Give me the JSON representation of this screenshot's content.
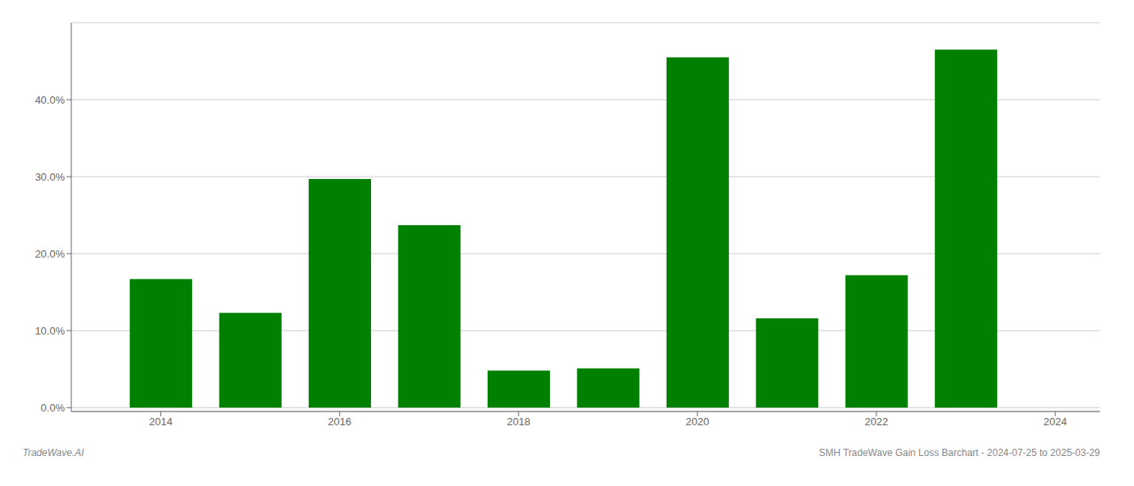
{
  "chart_data": {
    "type": "bar",
    "x": [
      2014,
      2015,
      2016,
      2017,
      2018,
      2019,
      2020,
      2021,
      2022,
      2023
    ],
    "values": [
      0.167,
      0.123,
      0.297,
      0.237,
      0.048,
      0.051,
      0.455,
      0.116,
      0.172,
      0.465
    ],
    "color": "#008000",
    "xlim": [
      2013.0,
      2024.5
    ],
    "xticks": [
      2014,
      2016,
      2018,
      2020,
      2022,
      2024
    ],
    "ylim": [
      -0.005,
      0.5
    ],
    "yticks": [
      {
        "value": 0.0,
        "label": "0.0%"
      },
      {
        "value": 0.1,
        "label": "10.0%"
      },
      {
        "value": 0.2,
        "label": "20.0%"
      },
      {
        "value": 0.3,
        "label": "30.0%"
      },
      {
        "value": 0.4,
        "label": "40.0%"
      }
    ],
    "grid": true,
    "annotations": [
      "TradeWave.AI",
      "SMH TradeWave Gain Loss Barchart - 2024-07-25 to 2025-03-29"
    ]
  }
}
